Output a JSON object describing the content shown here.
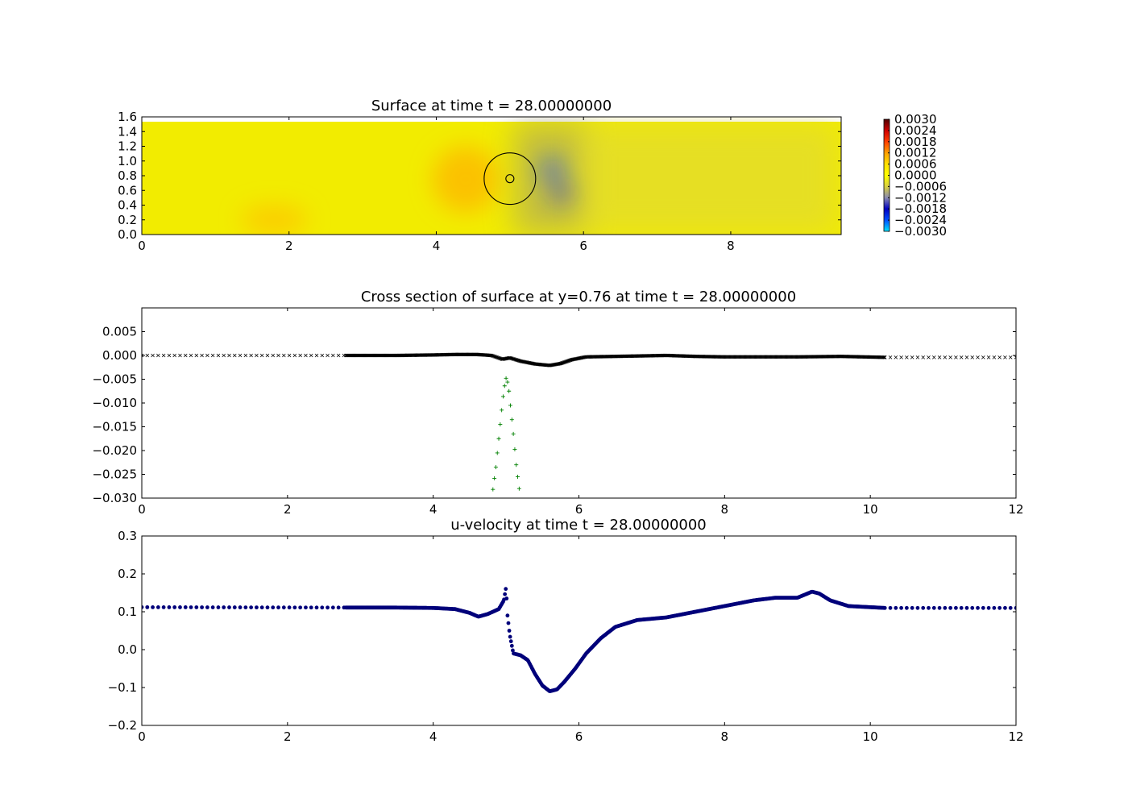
{
  "chart_data": [
    {
      "type": "heatmap",
      "title": "Surface at time t =    28.00000000",
      "xlim": [
        0,
        9.5
      ],
      "ylim": [
        0,
        1.6
      ],
      "xticks": [
        0,
        2,
        4,
        6,
        8
      ],
      "xtick_labels": [
        "0",
        "2",
        "4",
        "6",
        "8"
      ],
      "yticks": [
        0,
        0.2,
        0.4,
        0.6,
        0.8,
        1.0,
        1.2,
        1.4,
        1.6
      ],
      "ytick_labels": [
        "0.0",
        "0.2",
        "0.4",
        "0.6",
        "0.8",
        "1.0",
        "1.2",
        "1.4",
        "1.6"
      ],
      "field_ymax": 1.52,
      "colorbar": {
        "ticks": [
          0.003,
          0.0024,
          0.0018,
          0.0012,
          0.0006,
          0.0,
          -0.0006,
          -0.0012,
          -0.0018,
          -0.0024,
          -0.003
        ],
        "labels": [
          "0.0030",
          "0.0024",
          "0.0018",
          "0.0012",
          "0.0006",
          "0.0000",
          "−0.0006",
          "−0.0012",
          "−0.0018",
          "−0.0024",
          "−0.0030"
        ],
        "colors": [
          "#00e5ff",
          "#0050ff",
          "#0000c0",
          "#8a8ab0",
          "#d8d040",
          "#ffff00",
          "#ffe000",
          "#ffa000",
          "#ff4000",
          "#d00000",
          "#500000"
        ]
      },
      "features": [
        {
          "kind": "depression",
          "x": 5.58,
          "y": 0.88,
          "rx": 0.18,
          "ry": 0.16,
          "color": "#1050ff"
        },
        {
          "kind": "depression",
          "x": 5.7,
          "y": 0.56,
          "rx": 0.18,
          "ry": 0.12,
          "color": "#2030d0"
        },
        {
          "kind": "elevation",
          "x": 4.4,
          "y": 0.75,
          "rx": 0.45,
          "ry": 0.45,
          "color": "#ffb000"
        },
        {
          "kind": "elevation",
          "x": 1.8,
          "y": 0.2,
          "rx": 0.45,
          "ry": 0.2,
          "color": "#ffc000"
        }
      ],
      "circles": [
        {
          "x": 5.0,
          "y": 0.76,
          "r": 0.35
        },
        {
          "x": 5.0,
          "y": 0.76,
          "r": 0.055
        }
      ]
    },
    {
      "type": "scatter",
      "title": "Cross section of surface at y=0.76 at time t =    28.00000000",
      "xlim": [
        0,
        12
      ],
      "ylim": [
        -0.03,
        0.01
      ],
      "xticks": [
        0,
        2,
        4,
        6,
        8,
        10,
        12
      ],
      "xtick_labels": [
        "0",
        "2",
        "4",
        "6",
        "8",
        "10",
        "12"
      ],
      "yticks": [
        0.005,
        0.0,
        -0.005,
        -0.01,
        -0.015,
        -0.02,
        -0.025,
        -0.03
      ],
      "ytick_labels": [
        "0.005",
        "0.000",
        "−0.005",
        "−0.010",
        "−0.015",
        "−0.020",
        "−0.025",
        "−0.030"
      ],
      "series": [
        {
          "marker": "x",
          "color": "#000000",
          "points": [
            [
              0.0,
              0.0
            ],
            [
              2.8,
              0.0
            ],
            [
              2.8,
              0.0
            ],
            [
              3.5,
              0.0
            ],
            [
              4.0,
              0.0001
            ],
            [
              4.3,
              0.0002
            ],
            [
              4.6,
              0.0002
            ],
            [
              4.8,
              0.0
            ],
            [
              4.95,
              -0.0008
            ],
            [
              5.05,
              -0.0005
            ],
            [
              5.2,
              -0.0012
            ],
            [
              5.4,
              -0.0018
            ],
            [
              5.6,
              -0.0021
            ],
            [
              5.75,
              -0.0017
            ],
            [
              5.9,
              -0.0009
            ],
            [
              6.1,
              -0.0003
            ],
            [
              6.5,
              -0.0002
            ],
            [
              7.2,
              0.0
            ],
            [
              7.6,
              -0.0002
            ],
            [
              8.0,
              -0.0003
            ],
            [
              8.5,
              -0.0003
            ],
            [
              9.0,
              -0.0003
            ],
            [
              9.6,
              -0.0002
            ],
            [
              10.2,
              -0.0004
            ],
            [
              12.0,
              -0.0004
            ]
          ],
          "sparse_ranges": [
            [
              0,
              2.8
            ],
            [
              10.2,
              12
            ]
          ],
          "sparse_step": 0.075,
          "dense_step": 0.012
        },
        {
          "marker": "+",
          "color": "#008000",
          "points": [
            [
              4.8,
              -0.0305
            ],
            [
              4.86,
              -0.0235
            ],
            [
              4.9,
              -0.0175
            ],
            [
              4.94,
              -0.0115
            ],
            [
              4.97,
              -0.0072
            ],
            [
              5.0,
              -0.0048
            ],
            [
              5.03,
              -0.006
            ],
            [
              5.06,
              -0.0105
            ],
            [
              5.1,
              -0.0165
            ],
            [
              5.14,
              -0.023
            ],
            [
              5.2,
              -0.0305
            ]
          ],
          "step": 0.02
        }
      ]
    },
    {
      "type": "scatter",
      "title": "u-velocity at time t =    28.00000000",
      "xlim": [
        0,
        12
      ],
      "ylim": [
        -0.2,
        0.3
      ],
      "xticks": [
        0,
        2,
        4,
        6,
        8,
        10,
        12
      ],
      "xtick_labels": [
        "0",
        "2",
        "4",
        "6",
        "8",
        "10",
        "12"
      ],
      "yticks": [
        0.3,
        0.2,
        0.1,
        0.0,
        -0.1,
        -0.2
      ],
      "ytick_labels": [
        "0.3",
        "0.2",
        "0.1",
        "0.0",
        "−0.1",
        "−0.2"
      ],
      "series": [
        {
          "marker": "o",
          "color": "#00007a",
          "points": [
            [
              0.0,
              0.112
            ],
            [
              2.8,
              0.111
            ],
            [
              3.5,
              0.111
            ],
            [
              4.0,
              0.11
            ],
            [
              4.3,
              0.107
            ],
            [
              4.5,
              0.097
            ],
            [
              4.62,
              0.087
            ],
            [
              4.75,
              0.094
            ],
            [
              4.9,
              0.107
            ],
            [
              4.97,
              0.13
            ],
            [
              5.0,
              0.165
            ],
            [
              5.02,
              0.09
            ],
            [
              5.05,
              0.04
            ],
            [
              5.1,
              -0.01
            ],
            [
              5.2,
              -0.015
            ],
            [
              5.3,
              -0.028
            ],
            [
              5.4,
              -0.065
            ],
            [
              5.5,
              -0.095
            ],
            [
              5.6,
              -0.11
            ],
            [
              5.7,
              -0.105
            ],
            [
              5.8,
              -0.085
            ],
            [
              5.95,
              -0.05
            ],
            [
              6.1,
              -0.01
            ],
            [
              6.3,
              0.03
            ],
            [
              6.5,
              0.06
            ],
            [
              6.8,
              0.078
            ],
            [
              7.2,
              0.085
            ],
            [
              7.6,
              0.1
            ],
            [
              8.0,
              0.115
            ],
            [
              8.4,
              0.13
            ],
            [
              8.7,
              0.137
            ],
            [
              9.0,
              0.137
            ],
            [
              9.1,
              0.145
            ],
            [
              9.2,
              0.153
            ],
            [
              9.3,
              0.148
            ],
            [
              9.45,
              0.13
            ],
            [
              9.7,
              0.115
            ],
            [
              10.2,
              0.11
            ],
            [
              12.0,
              0.11
            ]
          ],
          "sparse_ranges": [
            [
              0,
              2.8
            ],
            [
              10.2,
              12
            ]
          ],
          "sparse_step": 0.075,
          "dense_step": 0.012
        }
      ]
    }
  ]
}
